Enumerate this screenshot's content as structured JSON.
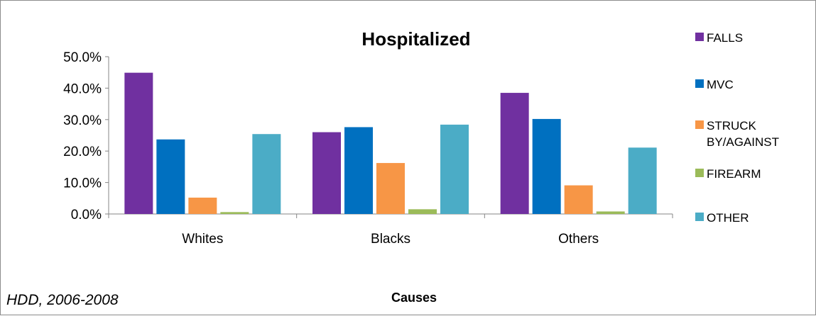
{
  "chart_data": {
    "type": "bar",
    "title": "Hospitalized",
    "xlabel": "Causes",
    "ylabel": "",
    "note": "HDD, 2006-2008",
    "categories": [
      "Whites",
      "Blacks",
      "Others"
    ],
    "series": [
      {
        "name": "FALLS",
        "label_lines": [
          "FALLS"
        ],
        "color": "#7030a0",
        "values": [
          44.9,
          26.0,
          38.5
        ]
      },
      {
        "name": "MVC",
        "label_lines": [
          "MVC"
        ],
        "color": "#0070c0",
        "values": [
          23.7,
          27.6,
          30.2
        ]
      },
      {
        "name": "STRUCK BY/AGAINST",
        "label_lines": [
          "STRUCK",
          "BY/AGAINST"
        ],
        "color": "#f79646",
        "values": [
          5.2,
          16.2,
          9.1
        ]
      },
      {
        "name": "FIREARM",
        "label_lines": [
          "FIREARM"
        ],
        "color": "#9bbb59",
        "values": [
          0.6,
          1.5,
          0.8
        ]
      },
      {
        "name": "OTHER",
        "label_lines": [
          "OTHER"
        ],
        "color": "#4bacc6",
        "values": [
          25.4,
          28.4,
          21.1
        ]
      }
    ],
    "ylim": [
      0,
      50
    ],
    "yticks": [
      "0.0%",
      "10.0%",
      "20.0%",
      "30.0%",
      "40.0%",
      "50.0%"
    ],
    "grid": false,
    "legend_position": "right"
  }
}
